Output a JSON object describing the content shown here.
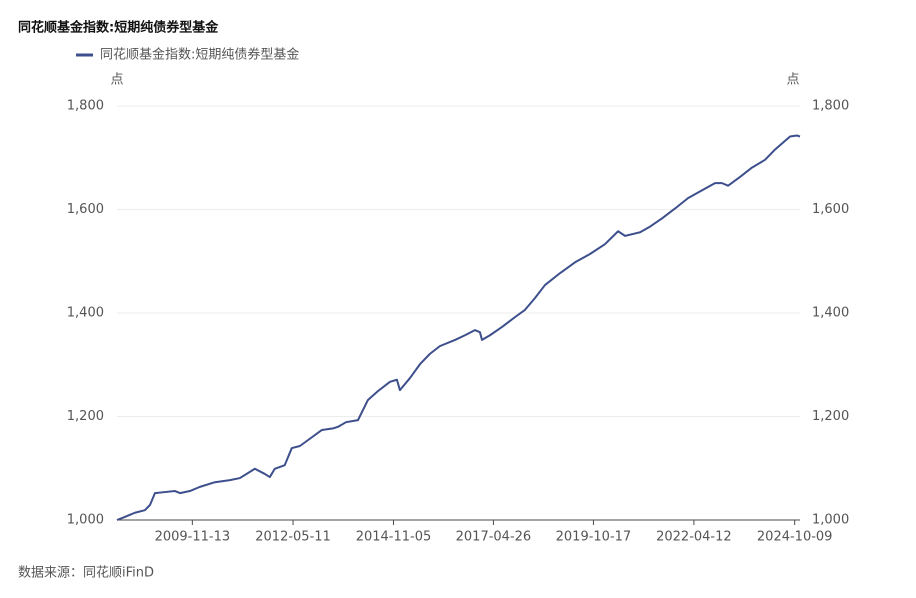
{
  "chart_data": {
    "type": "line",
    "title": "同花顺基金指数:短期纯债券型基金",
    "source": "数据来源：同花顺iFinD",
    "y_unit": "点",
    "y2_unit": "点",
    "grid": true,
    "legend": "top-left",
    "x": [
      "2008-01-02",
      "2008-03-13",
      "2008-06-12",
      "2008-09-10",
      "2008-10-26",
      "2008-12-10",
      "2009-03-10",
      "2009-06-09",
      "2009-07-24",
      "2009-10-22",
      "2010-01-20",
      "2010-06-05",
      "2010-10-19",
      "2011-01-17",
      "2011-06-01",
      "2011-08-30",
      "2011-10-14",
      "2011-11-28",
      "2012-02-26",
      "2012-04-30",
      "2012-07-12",
      "2012-10-10",
      "2013-01-27",
      "2013-05-07",
      "2013-06-21",
      "2013-09-02",
      "2013-12-19",
      "2014-03-19",
      "2014-06-17",
      "2014-10-04",
      "2014-12-06",
      "2015-01-02",
      "2015-04-02",
      "2015-07-02",
      "2015-09-30",
      "2015-12-29",
      "2016-05-14",
      "2016-08-12",
      "2016-11-10",
      "2016-12-25",
      "2017-01-13",
      "2017-03-26",
      "2017-07-13",
      "2017-11-07",
      "2018-02-05",
      "2018-05-07",
      "2018-08-05",
      "2018-12-19",
      "2019-05-04",
      "2019-09-16",
      "2020-01-29",
      "2020-05-27",
      "2020-07-29",
      "2020-12-12",
      "2021-03-12",
      "2021-06-29",
      "2021-10-24",
      "2022-02-18",
      "2022-06-07",
      "2022-10-20",
      "2022-12-22",
      "2023-02-15",
      "2023-06-03",
      "2023-09-19",
      "2024-01-15",
      "2024-04-15",
      "2024-08-28",
      "2024-10-30",
      "2024-11-26"
    ],
    "series": [
      {
        "name": "同花顺基金指数:短期纯债券型基金",
        "color": "#3d4f8c",
        "values": [
          1000,
          1006,
          1014,
          1019,
          1029,
          1052,
          1054,
          1056,
          1052,
          1056,
          1064,
          1073,
          1077,
          1081,
          1099,
          1089,
          1083,
          1099,
          1106,
          1139,
          1143,
          1157,
          1174,
          1177,
          1180,
          1189,
          1193,
          1232,
          1249,
          1267,
          1271,
          1251,
          1274,
          1301,
          1321,
          1336,
          1348,
          1357,
          1367,
          1363,
          1348,
          1357,
          1373,
          1392,
          1406,
          1429,
          1454,
          1477,
          1498,
          1514,
          1533,
          1558,
          1549,
          1556,
          1567,
          1583,
          1602,
          1622,
          1635,
          1651,
          1651,
          1646,
          1663,
          1681,
          1696,
          1716,
          1741,
          1743,
          1741
        ]
      }
    ],
    "xlim": [
      "2008-01-02",
      "2024-11-26"
    ],
    "xticks": [
      "2009-11-13",
      "2012-05-11",
      "2014-11-05",
      "2017-04-26",
      "2019-10-17",
      "2022-04-12",
      "2024-10-09"
    ],
    "ylim": [
      1000,
      1800
    ],
    "yticks": [
      {
        "value": 1000,
        "label": "1,000"
      },
      {
        "value": 1200,
        "label": "1,200"
      },
      {
        "value": 1400,
        "label": "1,400"
      },
      {
        "value": 1600,
        "label": "1,600"
      },
      {
        "value": 1800,
        "label": "1,800"
      }
    ],
    "y2lim": [
      1000,
      1800
    ],
    "y2ticks": [
      {
        "value": 1000,
        "label": "1,000"
      },
      {
        "value": 1200,
        "label": "1,200"
      },
      {
        "value": 1400,
        "label": "1,400"
      },
      {
        "value": 1600,
        "label": "1,600"
      },
      {
        "value": 1800,
        "label": "1,800"
      }
    ]
  }
}
